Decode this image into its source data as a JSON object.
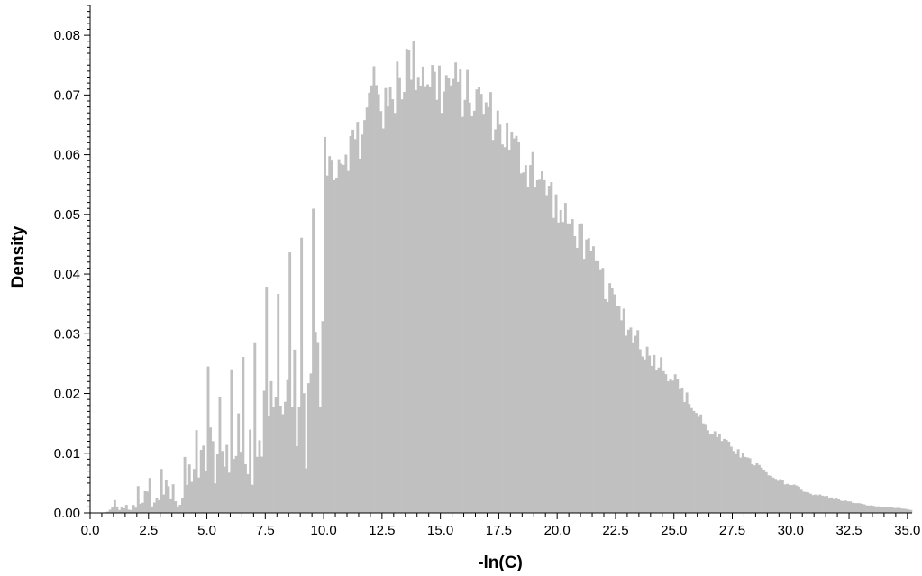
{
  "chart_data": {
    "type": "bar",
    "title": "",
    "xlabel": "-ln(C)",
    "ylabel": "Density",
    "xlim": [
      0,
      35.2
    ],
    "ylim": [
      0,
      0.085
    ],
    "grid": false,
    "bar_color": "#c0c0c0",
    "axis_color": "#000000",
    "bin_width": 0.1,
    "x_ticks": [
      "0.0",
      "2.5",
      "5.0",
      "7.5",
      "10.0",
      "12.5",
      "15.0",
      "17.5",
      "20.0",
      "22.5",
      "25.0",
      "27.5",
      "30.0",
      "32.5",
      "35.0"
    ],
    "y_ticks": [
      "0.00",
      "0.01",
      "0.02",
      "0.03",
      "0.04",
      "0.05",
      "0.06",
      "0.07",
      "0.08"
    ],
    "peak_points": [
      [
        1.1,
        0.0025
      ],
      [
        1.7,
        0.001
      ],
      [
        2.3,
        0.0075
      ],
      [
        2.8,
        0.0045
      ],
      [
        3.2,
        0.0105
      ],
      [
        3.7,
        0.003
      ],
      [
        4.2,
        0.0135
      ],
      [
        4.6,
        0.016
      ],
      [
        5.1,
        0.0275
      ],
      [
        5.6,
        0.022
      ],
      [
        6.1,
        0.027
      ],
      [
        6.6,
        0.031
      ],
      [
        7.0,
        0.031
      ],
      [
        7.5,
        0.041
      ],
      [
        8.0,
        0.042
      ],
      [
        8.4,
        0.05
      ],
      [
        8.9,
        0.046
      ],
      [
        9.3,
        0.048
      ],
      [
        9.8,
        0.064
      ],
      [
        10.3,
        0.062
      ],
      [
        10.8,
        0.064
      ],
      [
        11.3,
        0.066
      ],
      [
        11.6,
        0.065
      ],
      [
        12.2,
        0.079
      ],
      [
        12.6,
        0.071
      ],
      [
        13.2,
        0.076
      ],
      [
        13.6,
        0.0805
      ],
      [
        14.1,
        0.079
      ],
      [
        14.6,
        0.078
      ],
      [
        15.0,
        0.0745
      ],
      [
        15.4,
        0.077
      ],
      [
        16.2,
        0.074
      ],
      [
        16.8,
        0.073
      ],
      [
        17.4,
        0.07
      ],
      [
        17.9,
        0.0665
      ],
      [
        18.5,
        0.063
      ],
      [
        19.2,
        0.059
      ],
      [
        19.7,
        0.0575
      ],
      [
        20.1,
        0.053
      ],
      [
        20.8,
        0.0505
      ],
      [
        21.3,
        0.0465
      ],
      [
        21.8,
        0.043
      ],
      [
        22.3,
        0.038
      ],
      [
        22.8,
        0.0345
      ],
      [
        23.3,
        0.0315
      ],
      [
        23.8,
        0.0285
      ],
      [
        24.5,
        0.0265
      ],
      [
        25.0,
        0.0235
      ],
      [
        25.7,
        0.0195
      ],
      [
        26.3,
        0.0155
      ],
      [
        26.9,
        0.0135
      ],
      [
        27.5,
        0.0115
      ],
      [
        28.1,
        0.0095
      ],
      [
        28.6,
        0.0085
      ],
      [
        29.2,
        0.006
      ],
      [
        29.7,
        0.0055
      ],
      [
        30.3,
        0.0045
      ],
      [
        30.8,
        0.0035
      ],
      [
        31.4,
        0.003
      ],
      [
        31.9,
        0.0025
      ],
      [
        32.5,
        0.002
      ],
      [
        33.1,
        0.0015
      ],
      [
        33.6,
        0.0012
      ],
      [
        34.2,
        0.001
      ],
      [
        34.8,
        0.0008
      ],
      [
        35.1,
        0.0005
      ]
    ]
  }
}
